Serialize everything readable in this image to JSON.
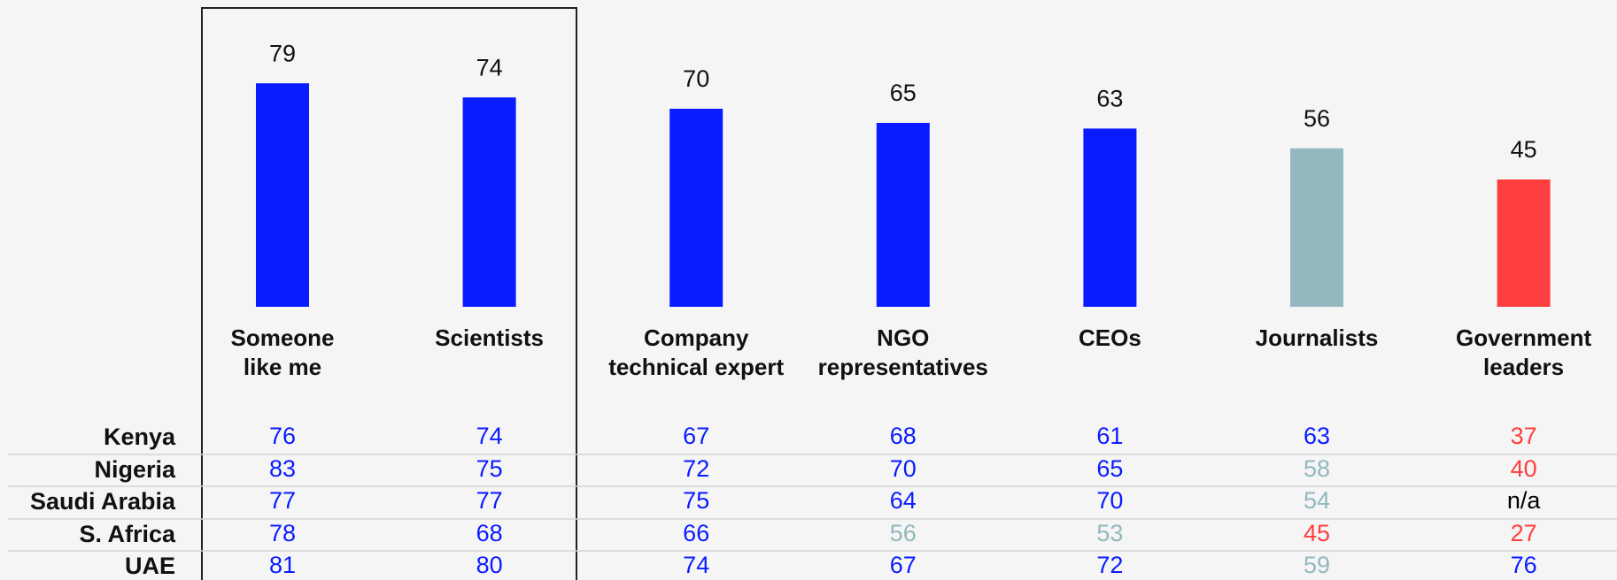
{
  "chart_data": {
    "type": "bar",
    "categories": [
      "Someone\nlike me",
      "Scientists",
      "Company\ntechnical expert",
      "NGO\nrepresentatives",
      "CEOs",
      "Journalists",
      "Government\nleaders"
    ],
    "values": [
      79,
      74,
      70,
      65,
      63,
      56,
      45
    ],
    "colors": [
      "#0a1cff",
      "#0a1cff",
      "#0a1cff",
      "#0a1cff",
      "#0a1cff",
      "#93b8be",
      "#ff3f3f"
    ],
    "table": {
      "rows": [
        {
          "label": "Kenya",
          "values": [
            76,
            74,
            67,
            68,
            61,
            63,
            37
          ],
          "colors": [
            "#0a1cff",
            "#0a1cff",
            "#0a1cff",
            "#0a1cff",
            "#0a1cff",
            "#0a1cff",
            "#ff3f3f"
          ]
        },
        {
          "label": "Nigeria",
          "values": [
            83,
            75,
            72,
            70,
            65,
            58,
            40
          ],
          "colors": [
            "#0a1cff",
            "#0a1cff",
            "#0a1cff",
            "#0a1cff",
            "#0a1cff",
            "#93b8be",
            "#ff3f3f"
          ]
        },
        {
          "label": "Saudi Arabia",
          "values": [
            77,
            77,
            75,
            64,
            70,
            54,
            "n/a"
          ],
          "colors": [
            "#0a1cff",
            "#0a1cff",
            "#0a1cff",
            "#0a1cff",
            "#0a1cff",
            "#93b8be",
            "#000000"
          ]
        },
        {
          "label": "S. Africa",
          "values": [
            78,
            68,
            66,
            56,
            53,
            45,
            27
          ],
          "colors": [
            "#0a1cff",
            "#0a1cff",
            "#0a1cff",
            "#93b8be",
            "#93b8be",
            "#ff3f3f",
            "#ff3f3f"
          ]
        },
        {
          "label": "UAE",
          "values": [
            81,
            80,
            74,
            67,
            72,
            59,
            76
          ],
          "colors": [
            "#0a1cff",
            "#0a1cff",
            "#0a1cff",
            "#0a1cff",
            "#0a1cff",
            "#93b8be",
            "#0a1cff"
          ]
        }
      ]
    }
  }
}
